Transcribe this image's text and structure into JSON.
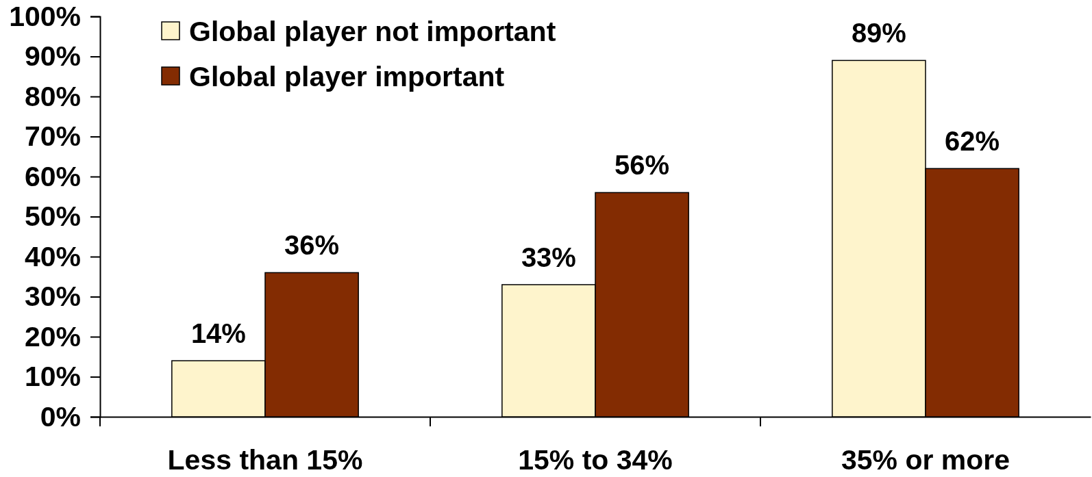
{
  "chart_data": {
    "type": "bar",
    "categories": [
      "Less than 15%",
      "15% to 34%",
      "35% or more"
    ],
    "series": [
      {
        "name": "Global player not important",
        "color": "#fef4cc",
        "values": [
          14,
          33,
          89
        ],
        "value_labels": [
          "14%",
          "33%",
          "89%"
        ]
      },
      {
        "name": "Global player important",
        "color": "#832c02",
        "values": [
          36,
          56,
          62
        ],
        "value_labels": [
          "36%",
          "56%",
          "62%"
        ]
      }
    ],
    "ylim": [
      0,
      100
    ],
    "yticks": [
      {
        "value": 0,
        "label": "0%"
      },
      {
        "value": 10,
        "label": "10%"
      },
      {
        "value": 20,
        "label": "20%"
      },
      {
        "value": 30,
        "label": "30%"
      },
      {
        "value": 40,
        "label": "40%"
      },
      {
        "value": 50,
        "label": "50%"
      },
      {
        "value": 60,
        "label": "60%"
      },
      {
        "value": 70,
        "label": "70%"
      },
      {
        "value": 80,
        "label": "80%"
      },
      {
        "value": 90,
        "label": "90%"
      },
      {
        "value": 100,
        "label": "100%"
      }
    ],
    "legend": "top left"
  }
}
